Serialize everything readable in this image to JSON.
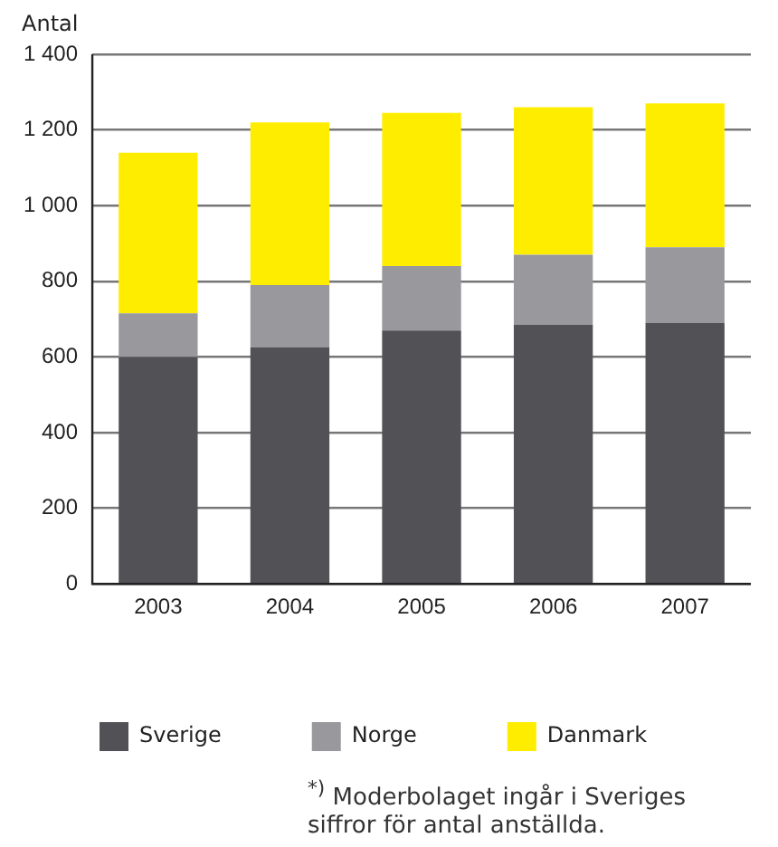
{
  "chart_data": {
    "type": "bar",
    "stacked": true,
    "ylabel": "Antal",
    "categories": [
      "2003",
      "2004",
      "2005",
      "2006",
      "2007"
    ],
    "series": [
      {
        "name": "Sverige",
        "color": "#525156",
        "values": [
          600,
          625,
          670,
          685,
          690
        ]
      },
      {
        "name": "Norge",
        "color": "#99989d",
        "values": [
          115,
          165,
          170,
          185,
          200
        ]
      },
      {
        "name": "Danmark",
        "color": "#ffed00",
        "values": [
          425,
          430,
          405,
          390,
          380
        ]
      }
    ],
    "ylim": [
      0,
      1400
    ],
    "yticks": [
      0,
      {
        "value": 200,
        "label": "200"
      },
      {
        "value": 400,
        "label": "400"
      },
      {
        "value": 600,
        "label": "600"
      },
      {
        "value": 800,
        "label": "800"
      },
      {
        "value": 1000,
        "label": "1 000"
      },
      {
        "value": 1200,
        "label": "1 200"
      },
      {
        "value": 1400,
        "label": "1 400"
      }
    ],
    "grid": "y",
    "legend": "bottom",
    "annotations": [
      "$^{*)}$ Moderbolaget ingår i Sveriges siffror för antal anställda."
    ]
  }
}
